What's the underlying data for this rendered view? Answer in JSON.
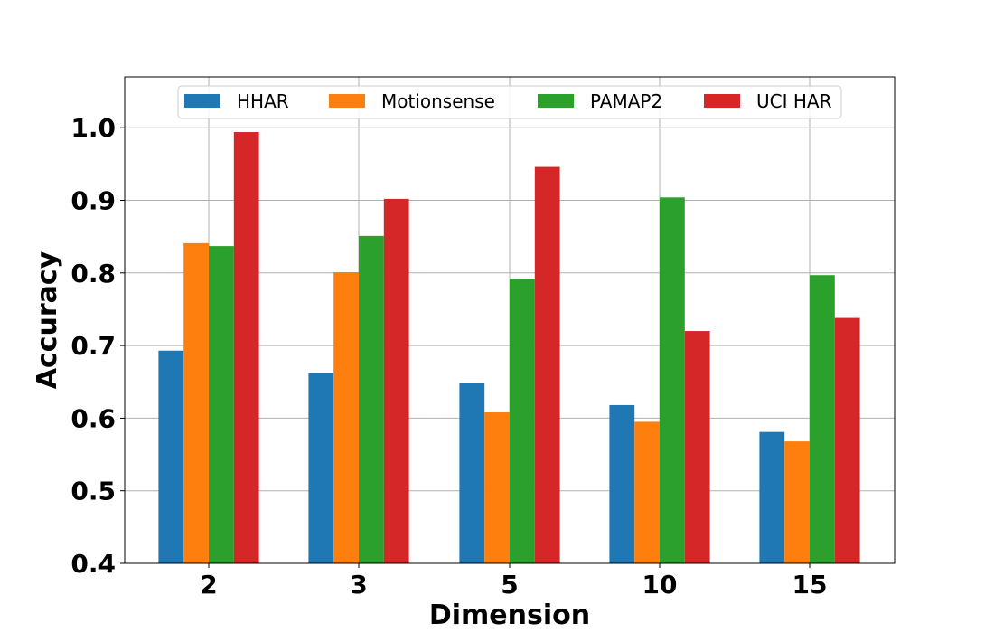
{
  "chart_data": {
    "type": "bar",
    "xlabel": "Dimension",
    "ylabel": "Accuracy",
    "categories": [
      "2",
      "3",
      "5",
      "10",
      "15"
    ],
    "ylim": [
      0.4,
      1.07
    ],
    "yticks": [
      "0.4",
      "0.5",
      "0.6",
      "0.7",
      "0.8",
      "0.9",
      "1.0"
    ],
    "grid": true,
    "legend_position": "top-center",
    "series": [
      {
        "name": "HHAR",
        "color": "#1f77b4",
        "values": [
          0.693,
          0.662,
          0.648,
          0.618,
          0.581
        ]
      },
      {
        "name": "Motionsense",
        "color": "#ff7f0e",
        "values": [
          0.841,
          0.801,
          0.608,
          0.595,
          0.568
        ]
      },
      {
        "name": "PAMAP2",
        "color": "#2ca02c",
        "values": [
          0.837,
          0.851,
          0.792,
          0.904,
          0.797
        ]
      },
      {
        "name": "UCI HAR",
        "color": "#d62728",
        "values": [
          0.994,
          0.902,
          0.946,
          0.72,
          0.738
        ]
      }
    ]
  }
}
